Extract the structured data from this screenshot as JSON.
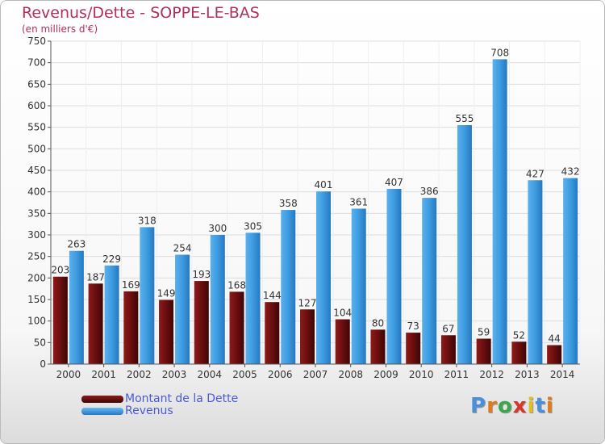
{
  "header": {
    "title": "Revenus/Dette - SOPPE-LE-BAS",
    "subtitle": "(en milliers d'€)"
  },
  "chart_data": {
    "type": "bar",
    "title": "Revenus/Dette - SOPPE-LE-BAS",
    "subtitle": "(en milliers d'€)",
    "xlabel": "",
    "ylabel": "",
    "categories": [
      "2000",
      "2001",
      "2002",
      "2003",
      "2004",
      "2005",
      "2006",
      "2007",
      "2008",
      "2009",
      "2010",
      "2011",
      "2012",
      "2013",
      "2014"
    ],
    "series": [
      {
        "name": "Montant de la Dette",
        "color": "#7a1414",
        "values": [
          203,
          187,
          169,
          149,
          193,
          168,
          144,
          127,
          104,
          80,
          73,
          67,
          59,
          52,
          44
        ]
      },
      {
        "name": "Revenus",
        "color": "#3d9be0",
        "values": [
          263,
          229,
          318,
          254,
          300,
          305,
          358,
          401,
          361,
          407,
          386,
          555,
          708,
          427,
          432
        ]
      }
    ],
    "ylim": [
      0,
      750
    ],
    "yticks": [
      0,
      50,
      100,
      150,
      200,
      250,
      300,
      350,
      400,
      450,
      500,
      550,
      600,
      650,
      700,
      750
    ],
    "grid": true,
    "legend_position": "bottom-left",
    "data_labels": true
  },
  "legend": {
    "items": [
      {
        "label": "Montant de la Dette",
        "color": "#6e1010"
      },
      {
        "label": "Revenus",
        "color": "#3d9be0"
      }
    ]
  },
  "brand": {
    "letters": [
      "P",
      "r",
      "o",
      "x",
      "i",
      "t",
      "i"
    ],
    "colors": [
      "#4a90d9",
      "#e07a1a",
      "#3aa84a",
      "#d9362a",
      "#e0c020",
      "#4a90d9",
      "#e07a1a"
    ]
  },
  "colors": {
    "title": "#b0305a",
    "grid": "#dddddd",
    "axis": "#555555"
  }
}
